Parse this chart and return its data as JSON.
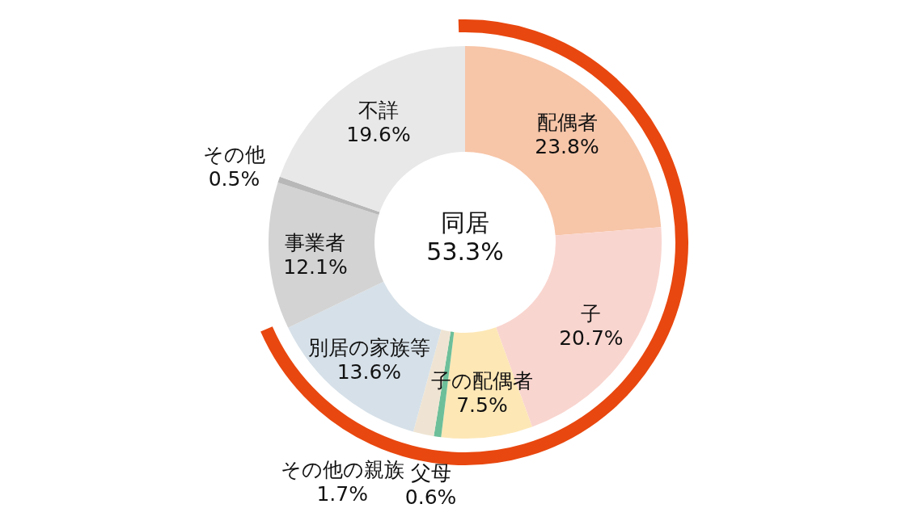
{
  "chart_data": {
    "type": "donut",
    "categories": [
      "配偶者",
      "子",
      "子の配偶者",
      "父母",
      "その他の親族",
      "別居の家族等",
      "事業者",
      "その他",
      "不詳"
    ],
    "values": [
      23.8,
      20.7,
      7.5,
      0.6,
      1.7,
      13.6,
      12.1,
      0.5,
      19.6
    ],
    "value_labels": [
      "23.8%",
      "20.7%",
      "7.5%",
      "0.6%",
      "1.7%",
      "13.6%",
      "12.1%",
      "0.5%",
      "19.6%"
    ],
    "colors": [
      "#f7c5a8",
      "#f9d5cf",
      "#fde7b5",
      "#6dbf9a",
      "#efe4d3",
      "#d6e0e8",
      "#d3d3d3",
      "#b8b8b8",
      "#e8e8e8"
    ],
    "annotations": [
      "同居\n53.3%"
    ]
  }
}
